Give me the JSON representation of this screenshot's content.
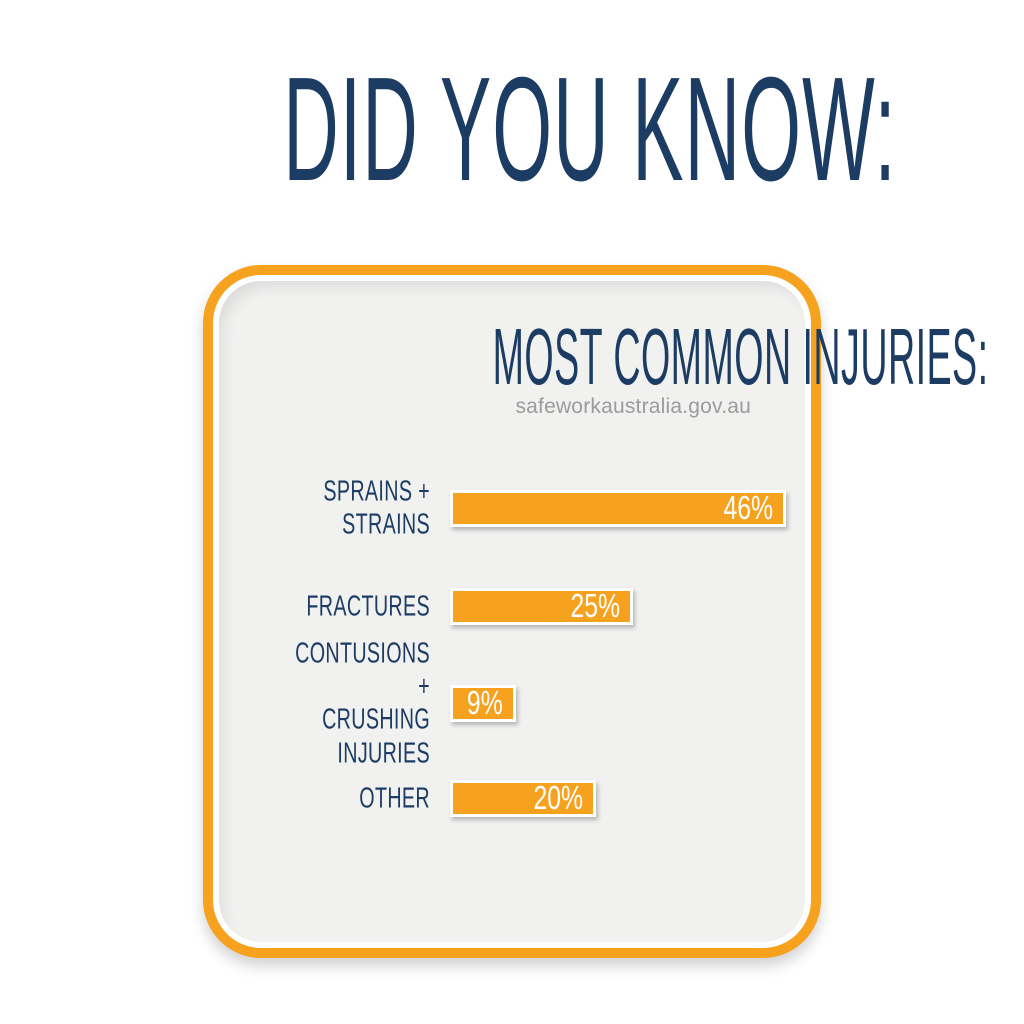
{
  "page_title": "DID YOU KNOW:",
  "card": {
    "heading": "MOST COMMON INJURIES:",
    "source": "safeworkaustralia.gov.au"
  },
  "chart_data": {
    "type": "bar",
    "orientation": "horizontal",
    "title": "MOST COMMON INJURIES:",
    "source": "safeworkaustralia.gov.au",
    "categories": [
      "SPRAINS + STRAINS",
      "FRACTURES",
      "CONTUSIONS + CRUSHING INJURIES",
      "OTHER"
    ],
    "values": [
      46,
      25,
      9,
      20
    ],
    "value_labels": [
      "46%",
      "25%",
      "9%",
      "20%"
    ],
    "row_labels": [
      "SPRAINS +\nSTRAINS",
      "FRACTURES",
      "CONTUSIONS +\nCRUSHING INJURIES",
      "OTHER"
    ],
    "unit": "percent",
    "xlim": [
      0,
      50
    ],
    "grid": false,
    "legend": false,
    "bar_color": "#F6A21F",
    "bar_border_color": "#FFFFFF",
    "value_text_color": "#FFFFFF",
    "category_text_color": "#1D3C63"
  },
  "colors": {
    "navy": "#1D3C63",
    "orange": "#F6A21F",
    "card_background": "#F1F1F0",
    "page_background": "#FFFFFF",
    "source_text": "#9B9B9B"
  }
}
